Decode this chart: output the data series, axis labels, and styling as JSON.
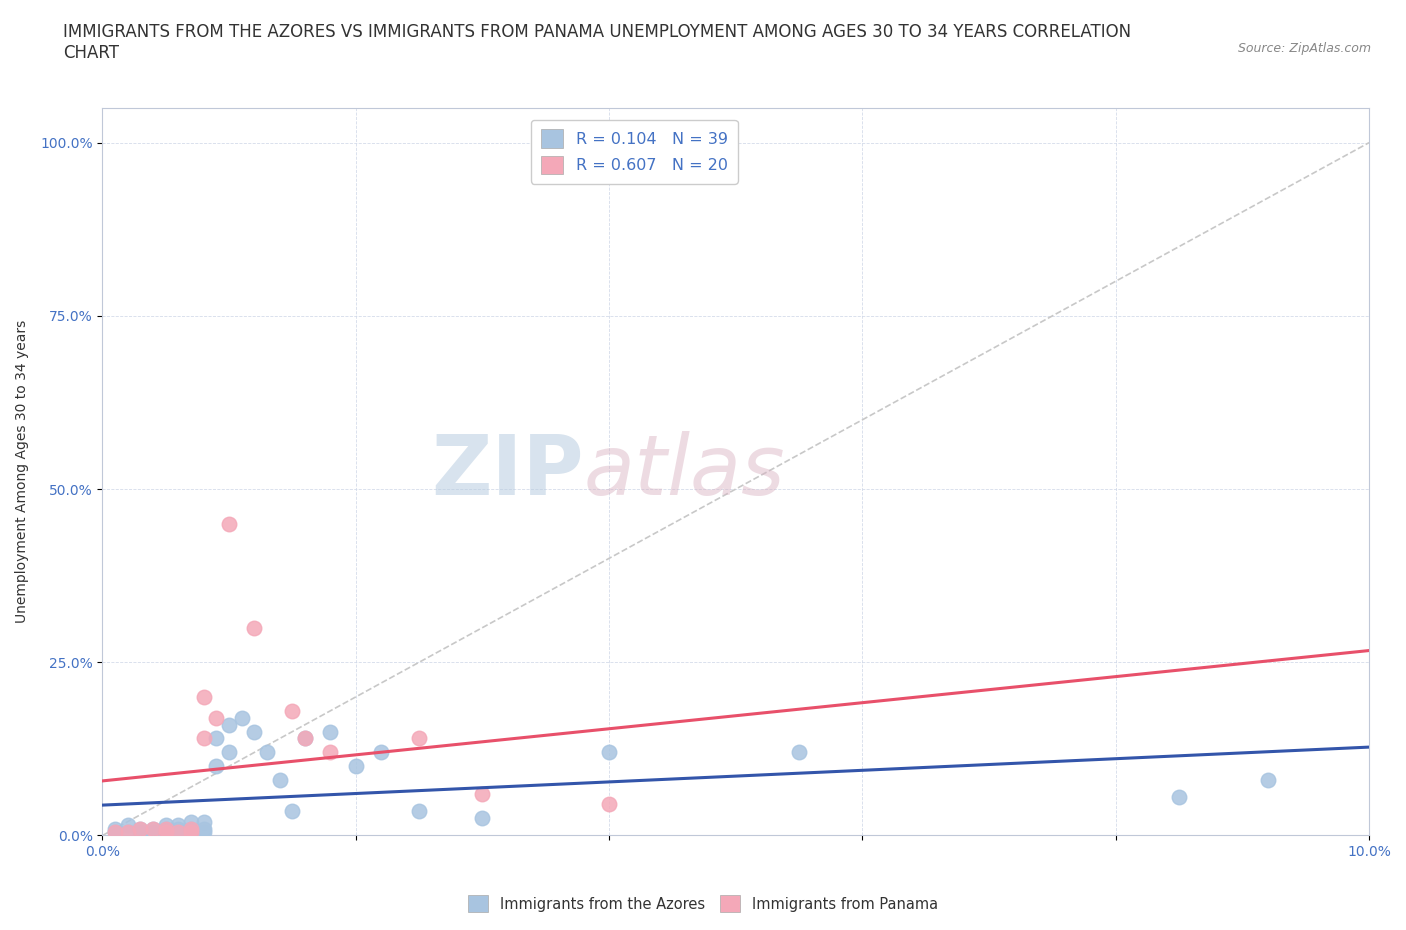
{
  "title": "IMMIGRANTS FROM THE AZORES VS IMMIGRANTS FROM PANAMA UNEMPLOYMENT AMONG AGES 30 TO 34 YEARS CORRELATION\nCHART",
  "source": "Source: ZipAtlas.com",
  "ylabel": "Unemployment Among Ages 30 to 34 years",
  "xlim": [
    0.0,
    0.1
  ],
  "ylim": [
    0.0,
    1.05
  ],
  "xticks": [
    0.0,
    0.02,
    0.04,
    0.06,
    0.08,
    0.1
  ],
  "xticklabels": [
    "0.0%",
    "",
    "",
    "",
    "",
    "10.0%"
  ],
  "yticks": [
    0.0,
    0.25,
    0.5,
    0.75,
    1.0
  ],
  "yticklabels": [
    "0.0%",
    "25.0%",
    "50.0%",
    "75.0%",
    "100.0%"
  ],
  "legend_r1": "R = 0.104   N = 39",
  "legend_r2": "R = 0.607   N = 20",
  "color_azores": "#a8c4e0",
  "color_panama": "#f4a8b8",
  "trendline_azores": "#3355aa",
  "trendline_panama": "#e8506a",
  "diagonal_color": "#c8c8c8",
  "title_fontsize": 12,
  "axis_label_fontsize": 10,
  "tick_fontsize": 10,
  "azores_x": [
    0.001,
    0.001,
    0.002,
    0.002,
    0.003,
    0.003,
    0.004,
    0.004,
    0.005,
    0.005,
    0.005,
    0.006,
    0.006,
    0.006,
    0.007,
    0.007,
    0.007,
    0.008,
    0.008,
    0.008,
    0.009,
    0.009,
    0.01,
    0.01,
    0.011,
    0.012,
    0.013,
    0.014,
    0.015,
    0.016,
    0.018,
    0.02,
    0.022,
    0.025,
    0.03,
    0.04,
    0.055,
    0.085,
    0.092
  ],
  "azores_y": [
    0.005,
    0.01,
    0.005,
    0.015,
    0.005,
    0.01,
    0.005,
    0.01,
    0.005,
    0.01,
    0.015,
    0.005,
    0.01,
    0.015,
    0.005,
    0.01,
    0.02,
    0.005,
    0.01,
    0.02,
    0.1,
    0.14,
    0.12,
    0.16,
    0.17,
    0.15,
    0.12,
    0.08,
    0.035,
    0.14,
    0.15,
    0.1,
    0.12,
    0.035,
    0.025,
    0.12,
    0.12,
    0.055,
    0.08
  ],
  "panama_x": [
    0.001,
    0.002,
    0.003,
    0.004,
    0.005,
    0.005,
    0.006,
    0.007,
    0.007,
    0.008,
    0.008,
    0.009,
    0.01,
    0.012,
    0.015,
    0.016,
    0.018,
    0.025,
    0.03,
    0.04
  ],
  "panama_y": [
    0.005,
    0.005,
    0.01,
    0.01,
    0.005,
    0.01,
    0.005,
    0.005,
    0.01,
    0.14,
    0.2,
    0.17,
    0.45,
    0.3,
    0.18,
    0.14,
    0.12,
    0.14,
    0.06,
    0.045
  ],
  "trendline_azores_params": [
    0.6,
    0.02
  ],
  "trendline_panama_params": [
    16.0,
    -0.02
  ]
}
